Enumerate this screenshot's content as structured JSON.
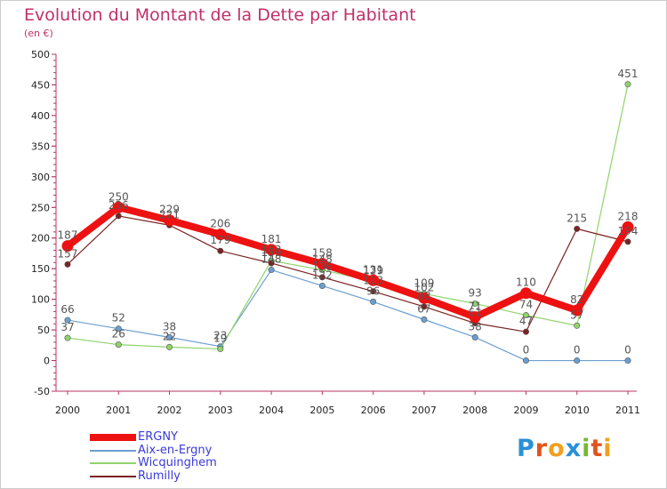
{
  "header": {
    "title": "Evolution du Montant de la Dette par Habitant",
    "subtitle": "(en €)"
  },
  "logo": {
    "letters": [
      "P",
      "r",
      "o",
      "x",
      "i",
      "t",
      "i"
    ],
    "colors": [
      "#2a8fd8",
      "#e0541c",
      "#f0a020",
      "#2a8fd8",
      "#79b833",
      "#e0541c",
      "#f0a020"
    ]
  },
  "chart_data": {
    "type": "line",
    "title": "Evolution du Montant de la Dette par Habitant",
    "subtitle": "(en €)",
    "xlabel": "",
    "ylabel": "",
    "x": [
      "2000",
      "2001",
      "2002",
      "2003",
      "2004",
      "2005",
      "2006",
      "2007",
      "2008",
      "2009",
      "2010",
      "2011"
    ],
    "ylim": [
      -50,
      500
    ],
    "yticks": [
      -50,
      0,
      50,
      100,
      150,
      200,
      250,
      300,
      350,
      400,
      450,
      500
    ],
    "grid": false,
    "legend_position": "bottom-left",
    "series": [
      {
        "name": "ERGNY",
        "color": "#ee1111",
        "values": [
          187,
          250,
          229,
          206,
          181,
          158,
          131,
          102,
          71,
          110,
          82,
          218
        ]
      },
      {
        "name": "Aix-en-Ergny",
        "color": "#6b9fd0",
        "values": [
          66,
          52,
          38,
          23,
          148,
          122,
          96,
          67,
          38,
          0,
          0,
          0
        ]
      },
      {
        "name": "Wicquinghem",
        "color": "#8fd46b",
        "values": [
          37,
          26,
          22,
          19,
          163,
          148,
          129,
          109,
          93,
          74,
          57,
          451
        ]
      },
      {
        "name": "Rumilly",
        "color": "#7a2222",
        "values": [
          157,
          236,
          221,
          179,
          159,
          136,
          113,
          88,
          61,
          47,
          215,
          194
        ]
      }
    ]
  }
}
